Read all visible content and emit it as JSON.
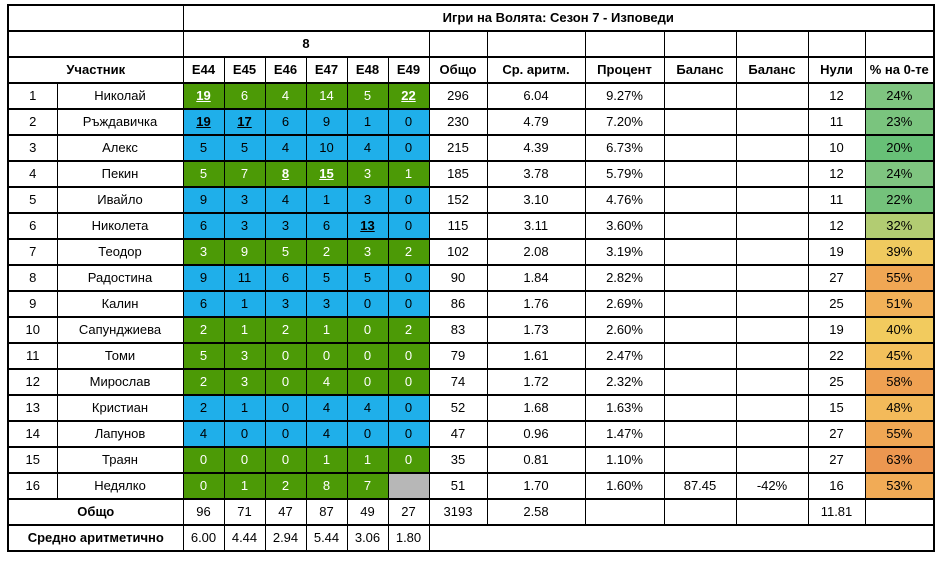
{
  "title": "Игри на Волята: Сезон 7 - Изповеди",
  "group_label": "8",
  "header": {
    "participant": "Участник",
    "episodes": [
      "Е44",
      "Е45",
      "Е46",
      "Е47",
      "Е48",
      "Е49"
    ],
    "total": "Общо",
    "average": "Ср. аритм.",
    "percent": "Процент",
    "balance1": "Баланс",
    "balance2": "Баланс",
    "zeros": "Нули",
    "zero_percent": "% на 0-те"
  },
  "colors": {
    "row_green": "#4c9a06",
    "row_green_text": "#ffffff",
    "row_blue": "#1fafea",
    "row_blue_text": "#000000",
    "empty_gray": "#b7b7b7",
    "border": "#000000"
  },
  "rows": [
    {
      "rank": "1",
      "name": "Николай",
      "color": "green",
      "scores": [
        "19",
        "6",
        "4",
        "14",
        "5",
        "22"
      ],
      "wins": [
        0,
        5
      ],
      "total": "296",
      "avg": "6.04",
      "percent": "9.27%",
      "balance1": "",
      "balance2": "",
      "zeros": "12",
      "zero_pct": "24%",
      "zero_pct_color": "#7fc580"
    },
    {
      "rank": "2",
      "name": "Ръждавичка",
      "color": "blue",
      "scores": [
        "19",
        "17",
        "6",
        "9",
        "1",
        "0"
      ],
      "wins": [
        0,
        1
      ],
      "total": "230",
      "avg": "4.79",
      "percent": "7.20%",
      "balance1": "",
      "balance2": "",
      "zeros": "11",
      "zero_pct": "23%",
      "zero_pct_color": "#7ac47e"
    },
    {
      "rank": "3",
      "name": "Алекс",
      "color": "blue",
      "scores": [
        "5",
        "5",
        "4",
        "10",
        "4",
        "0"
      ],
      "wins": [],
      "total": "215",
      "avg": "4.39",
      "percent": "6.73%",
      "balance1": "",
      "balance2": "",
      "zeros": "10",
      "zero_pct": "20%",
      "zero_pct_color": "#68c077"
    },
    {
      "rank": "4",
      "name": "Пекин",
      "color": "green",
      "scores": [
        "5",
        "7",
        "8",
        "15",
        "3",
        "1"
      ],
      "wins": [
        2,
        3
      ],
      "total": "185",
      "avg": "3.78",
      "percent": "5.79%",
      "balance1": "",
      "balance2": "",
      "zeros": "12",
      "zero_pct": "24%",
      "zero_pct_color": "#7fc580"
    },
    {
      "rank": "5",
      "name": "Ивайло",
      "color": "blue",
      "scores": [
        "9",
        "3",
        "4",
        "1",
        "3",
        "0"
      ],
      "wins": [],
      "total": "152",
      "avg": "3.10",
      "percent": "4.76%",
      "balance1": "",
      "balance2": "",
      "zeros": "11",
      "zero_pct": "22%",
      "zero_pct_color": "#74c27b"
    },
    {
      "rank": "6",
      "name": "Николета",
      "color": "blue",
      "scores": [
        "6",
        "3",
        "3",
        "6",
        "13",
        "0"
      ],
      "wins": [
        4
      ],
      "total": "115",
      "avg": "3.11",
      "percent": "3.60%",
      "balance1": "",
      "balance2": "",
      "zeros": "12",
      "zero_pct": "32%",
      "zero_pct_color": "#b2cc72"
    },
    {
      "rank": "7",
      "name": "Теодор",
      "color": "green",
      "scores": [
        "3",
        "9",
        "5",
        "2",
        "3",
        "2"
      ],
      "wins": [],
      "total": "102",
      "avg": "2.08",
      "percent": "3.19%",
      "balance1": "",
      "balance2": "",
      "zeros": "19",
      "zero_pct": "39%",
      "zero_pct_color": "#f0ca5f"
    },
    {
      "rank": "8",
      "name": "Радостина",
      "color": "blue",
      "scores": [
        "9",
        "11",
        "6",
        "5",
        "5",
        "0"
      ],
      "wins": [],
      "total": "90",
      "avg": "1.84",
      "percent": "2.82%",
      "balance1": "",
      "balance2": "",
      "zeros": "27",
      "zero_pct": "55%",
      "zero_pct_color": "#f0a754"
    },
    {
      "rank": "9",
      "name": "Калин",
      "color": "blue",
      "scores": [
        "6",
        "1",
        "3",
        "3",
        "0",
        "0"
      ],
      "wins": [],
      "total": "86",
      "avg": "1.76",
      "percent": "2.69%",
      "balance1": "",
      "balance2": "",
      "zeros": "25",
      "zero_pct": "51%",
      "zero_pct_color": "#f2b158"
    },
    {
      "rank": "10",
      "name": "Сапунджиева",
      "color": "green",
      "scores": [
        "2",
        "1",
        "2",
        "1",
        "0",
        "2"
      ],
      "wins": [],
      "total": "83",
      "avg": "1.73",
      "percent": "2.60%",
      "balance1": "",
      "balance2": "",
      "zeros": "19",
      "zero_pct": "40%",
      "zero_pct_color": "#f2cb5e"
    },
    {
      "rank": "11",
      "name": "Томи",
      "color": "green",
      "scores": [
        "5",
        "3",
        "0",
        "0",
        "0",
        "0"
      ],
      "wins": [],
      "total": "79",
      "avg": "1.61",
      "percent": "2.47%",
      "balance1": "",
      "balance2": "",
      "zeros": "22",
      "zero_pct": "45%",
      "zero_pct_color": "#f3c05c"
    },
    {
      "rank": "12",
      "name": "Мирослав",
      "color": "green",
      "scores": [
        "2",
        "3",
        "0",
        "4",
        "0",
        "0"
      ],
      "wins": [],
      "total": "74",
      "avg": "1.72",
      "percent": "2.32%",
      "balance1": "",
      "balance2": "",
      "zeros": "25",
      "zero_pct": "58%",
      "zero_pct_color": "#efa152"
    },
    {
      "rank": "13",
      "name": "Кристиан",
      "color": "blue",
      "scores": [
        "2",
        "1",
        "0",
        "4",
        "4",
        "0"
      ],
      "wins": [],
      "total": "52",
      "avg": "1.68",
      "percent": "1.63%",
      "balance1": "",
      "balance2": "",
      "zeros": "15",
      "zero_pct": "48%",
      "zero_pct_color": "#f3ba5a"
    },
    {
      "rank": "14",
      "name": "Лапунов",
      "color": "blue",
      "scores": [
        "4",
        "0",
        "0",
        "4",
        "0",
        "0"
      ],
      "wins": [],
      "total": "47",
      "avg": "0.96",
      "percent": "1.47%",
      "balance1": "",
      "balance2": "",
      "zeros": "27",
      "zero_pct": "55%",
      "zero_pct_color": "#f0a754"
    },
    {
      "rank": "15",
      "name": "Траян",
      "color": "green",
      "scores": [
        "0",
        "0",
        "0",
        "1",
        "1",
        "0"
      ],
      "wins": [],
      "total": "35",
      "avg": "0.81",
      "percent": "1.10%",
      "balance1": "",
      "balance2": "",
      "zeros": "27",
      "zero_pct": "63%",
      "zero_pct_color": "#ec9750"
    },
    {
      "rank": "16",
      "name": "Недялко",
      "color": "green",
      "scores": [
        "0",
        "1",
        "2",
        "8",
        "7",
        null
      ],
      "wins": [],
      "total": "51",
      "avg": "1.70",
      "percent": "1.60%",
      "balance1": "87.45",
      "balance2": "-42%",
      "zeros": "16",
      "zero_pct": "53%",
      "zero_pct_color": "#f1ab56"
    }
  ],
  "totals_row": {
    "label": "Общо",
    "scores": [
      "96",
      "71",
      "47",
      "87",
      "49",
      "27"
    ],
    "total": "3193",
    "avg": "2.58",
    "percent": "",
    "balance1": "",
    "balance2": "",
    "zeros": "11.81",
    "zero_pct": ""
  },
  "averages_row": {
    "label": "Средно аритметично",
    "scores": [
      "6.00",
      "4.44",
      "2.94",
      "5.44",
      "3.06",
      "1.80"
    ]
  }
}
